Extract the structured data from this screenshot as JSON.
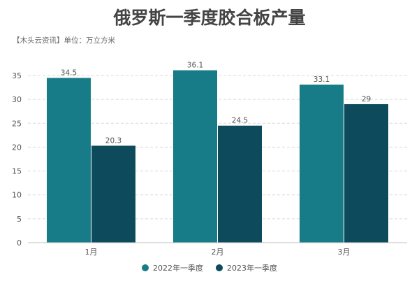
{
  "chart_data": {
    "type": "bar",
    "title": "俄罗斯一季度胶合板产量",
    "subtitle": "【木头云资讯】单位：万立方米",
    "categories": [
      "1月",
      "2月",
      "3月"
    ],
    "series": [
      {
        "name": "2022年一季度",
        "values": [
          34.5,
          36.1,
          33.1
        ],
        "labels": [
          "34.5",
          "36.1",
          "33.1"
        ],
        "color": "#177c87"
      },
      {
        "name": "2023年一季度",
        "values": [
          20.3,
          24.5,
          29
        ],
        "labels": [
          "20.3",
          "24.5",
          "29"
        ],
        "color": "#0d4b5c"
      }
    ],
    "ylim": [
      0,
      35
    ],
    "yticks": [
      0,
      5,
      10,
      15,
      20,
      25,
      30,
      35
    ],
    "grid": true,
    "legend": "bottom",
    "xlabel": "",
    "ylabel": ""
  }
}
